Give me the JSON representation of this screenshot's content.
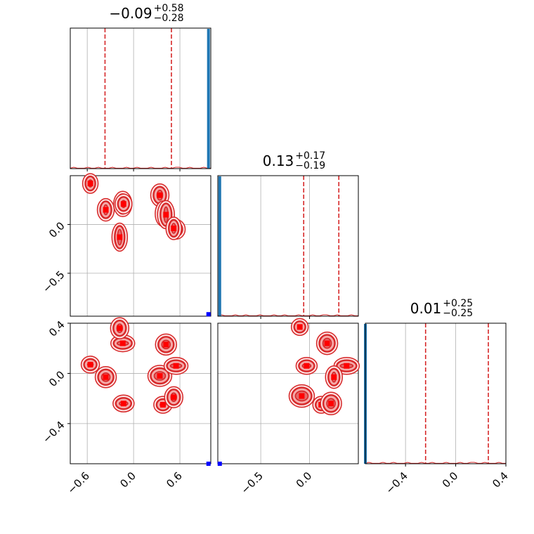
{
  "chart_data": {
    "type": "corner",
    "parameters": [
      {
        "title_value": "−0.09",
        "title_plus": "+0.58",
        "title_minus": "−0.28",
        "range": [
          -0.82,
          1.0
        ],
        "quantiles": [
          -0.37,
          0.49
        ]
      },
      {
        "title_value": "0.13",
        "title_plus": "+0.17",
        "title_minus": "−0.19",
        "range": [
          -0.94,
          0.5
        ],
        "quantiles": [
          -0.06,
          0.3
        ]
      },
      {
        "title_value": "0.01",
        "title_plus": "+0.25",
        "title_minus": "−0.25",
        "range": [
          -0.72,
          0.4
        ],
        "quantiles": [
          -0.24,
          0.26
        ]
      }
    ],
    "x_ticks": [
      {
        "values": [
          -0.6,
          0.0,
          0.6
        ],
        "labels": [
          "−0.6",
          "0.0",
          "0.6"
        ]
      },
      {
        "values": [
          -0.5,
          0.0
        ],
        "labels": [
          "−0.5",
          "0.0"
        ]
      },
      {
        "values": [
          -0.4,
          0.0,
          0.4
        ],
        "labels": [
          "−0.4",
          "0.0",
          "0.4"
        ]
      }
    ],
    "y_ticks": [
      {
        "values": [],
        "labels": []
      },
      {
        "values": [
          -0.5,
          0.0
        ],
        "labels": [
          "−0.5",
          "0.0"
        ]
      },
      {
        "values": [
          -0.4,
          0.0,
          0.4
        ],
        "labels": [
          "−0.4",
          "0.0",
          "0.4"
        ]
      }
    ],
    "blobs": [
      {
        "x": -0.56,
        "y": 0.42,
        "y2": 0.07
      },
      {
        "x": -0.36,
        "y": 0.15,
        "y2": -0.03
      },
      {
        "x": -0.14,
        "y": 0.21,
        "y2": 0.24
      },
      {
        "x": -0.18,
        "y": -0.13,
        "y2": 0.36
      },
      {
        "x": -0.13,
        "y": 0.21,
        "y2": -0.24
      },
      {
        "x": 0.34,
        "y": 0.3,
        "y2": -0.02
      },
      {
        "x": 0.38,
        "y": 0.11,
        "y2": -0.25
      },
      {
        "x": 0.42,
        "y": 0.1,
        "y2": 0.23
      },
      {
        "x": 0.55,
        "y": -0.05,
        "y2": 0.06
      },
      {
        "x": 0.52,
        "y": -0.04,
        "y2": -0.19
      }
    ],
    "blobs_23": [
      {
        "x": -0.1,
        "y": 0.37
      },
      {
        "x": 0.18,
        "y": 0.24
      },
      {
        "x": 0.38,
        "y": 0.06
      },
      {
        "x": 0.25,
        "y": -0.03
      },
      {
        "x": -0.03,
        "y": 0.06
      },
      {
        "x": -0.08,
        "y": -0.18
      },
      {
        "x": 0.12,
        "y": -0.25
      },
      {
        "x": 0.22,
        "y": -0.24
      }
    ],
    "truth": [
      0.97,
      -0.92,
      -0.72
    ],
    "colors": {
      "contour": "#d62728",
      "fill": "#f4a9a8",
      "core": "#ff0000",
      "hist": "#1f77b4",
      "truth": "#0000ff",
      "grid": "#b0b0b0"
    }
  }
}
